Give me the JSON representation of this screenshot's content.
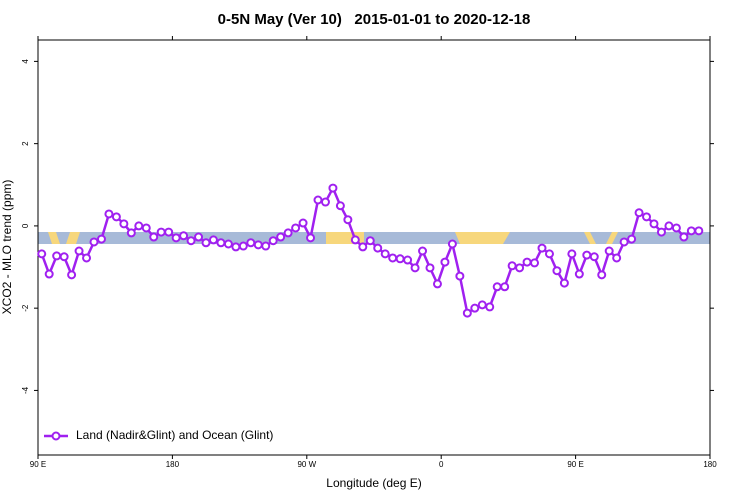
{
  "chart_data": {
    "type": "line",
    "title": "0-5N May (Ver 10)   2015-01-01 to 2020-12-18",
    "xlabel": "Longitude (deg E)",
    "ylabel": "XCO2 - MLO trend (ppm)",
    "xlim": [
      90,
      540
    ],
    "ylim": [
      -5.57,
      4.52
    ],
    "xticks": [
      {
        "value": 90,
        "label": "90 E"
      },
      180,
      {
        "value": 270,
        "label": "90 W"
      },
      {
        "value": 360,
        "label": "0"
      },
      {
        "value": 450,
        "label": "90 E"
      },
      {
        "value": 540,
        "label": "180"
      }
    ],
    "yticks": [
      -4,
      -2,
      0,
      2,
      4
    ],
    "legend": "bottom-left",
    "x": [
      92.5,
      97.5,
      102.5,
      107.5,
      112.5,
      117.5,
      122.5,
      127.5,
      132.5,
      137.5,
      142.5,
      147.5,
      152.5,
      157.5,
      162.5,
      167.5,
      172.5,
      177.5,
      182.5,
      187.5,
      192.5,
      197.5,
      202.5,
      207.5,
      212.5,
      217.5,
      222.5,
      227.5,
      232.5,
      237.5,
      242.5,
      247.5,
      252.5,
      257.5,
      262.5,
      267.5,
      272.5,
      277.5,
      282.5,
      287.5,
      292.5,
      297.5,
      302.5,
      307.5,
      312.5,
      317.5,
      322.5,
      327.5,
      332.5,
      337.5,
      342.5,
      347.5,
      352.5,
      357.5,
      362.5,
      367.5,
      372.5,
      377.5,
      382.5,
      387.5,
      392.5,
      397.5,
      402.5,
      407.5,
      412.5,
      417.5,
      422.5,
      427.5,
      432.5,
      437.5,
      442.5,
      447.5,
      452.5,
      457.5,
      462.5,
      467.5,
      472.5,
      477.5,
      482.5,
      487.5,
      492.5,
      497.5,
      502.5,
      507.5,
      512.5,
      517.5,
      522.5,
      527.5,
      532.5
    ],
    "series": [
      {
        "name": "Land (Nadir&Glint) and Ocean (Glint)",
        "color": "#a020f0",
        "values": [
          -0.68,
          -1.17,
          -0.73,
          -0.75,
          -1.19,
          -0.61,
          -0.78,
          -0.39,
          -0.32,
          0.29,
          0.22,
          0.05,
          -0.17,
          0,
          -0.05,
          -0.27,
          -0.15,
          -0.15,
          -0.29,
          -0.24,
          -0.36,
          -0.27,
          -0.41,
          -0.34,
          -0.41,
          -0.44,
          -0.51,
          -0.49,
          -0.41,
          -0.46,
          -0.49,
          -0.36,
          -0.27,
          -0.17,
          -0.05,
          0.07,
          -0.29,
          0.63,
          0.58,
          0.92,
          0.49,
          0.15,
          -0.34,
          -0.51,
          -0.36,
          -0.54,
          -0.68,
          -0.78,
          -0.8,
          -0.83,
          -1.02,
          -0.61,
          -1.02,
          -1.41,
          -0.88,
          -0.44,
          -1.22,
          -2.12,
          -2.0,
          -1.92,
          -1.97,
          -1.48,
          -1.48,
          -0.97,
          -1.02,
          -0.88,
          -0.9,
          -0.54,
          -0.68,
          -1.09,
          -1.39,
          -0.68,
          -1.17,
          -0.71,
          -0.75,
          -1.19,
          -0.61,
          -0.78,
          -0.39,
          -0.32,
          0.32,
          0.22,
          0.05,
          -0.15,
          0,
          -0.05,
          -0.27,
          -0.12,
          -0.12
        ]
      }
    ]
  }
}
